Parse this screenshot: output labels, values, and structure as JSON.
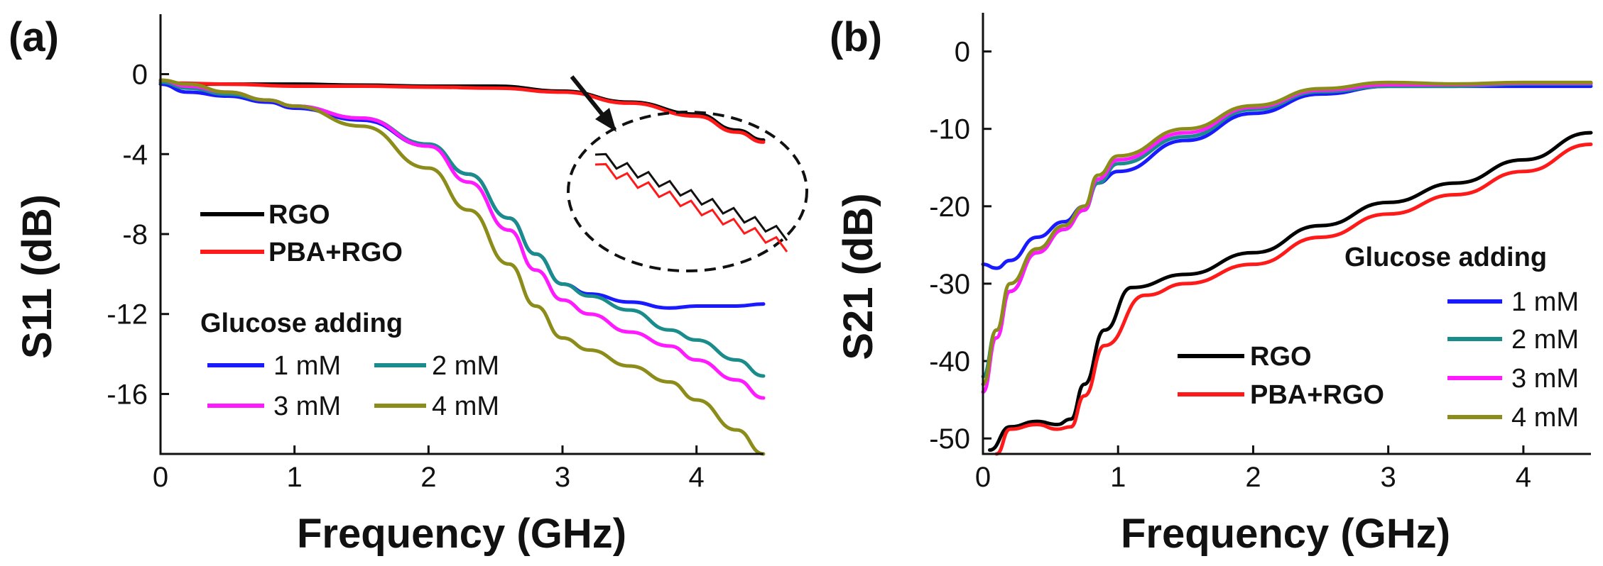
{
  "chart_data": [
    {
      "type": "line",
      "panel_label": "(a)",
      "xlabel": "Frequency (GHz)",
      "ylabel": "S11 (dB)",
      "xlim": [
        0,
        4.5
      ],
      "ylim": [
        -19,
        3
      ],
      "xticks": [
        0,
        1,
        2,
        3,
        4
      ],
      "yticks": [
        0,
        -4,
        -8,
        -12,
        -16
      ],
      "legend_group_title": "Glucose adding",
      "series": [
        {
          "name": "RGO",
          "color": "#000000",
          "x": [
            0.1,
            0.5,
            1.0,
            1.5,
            2.0,
            2.5,
            3.0,
            3.5,
            4.0,
            4.3,
            4.5
          ],
          "values": [
            -0.5,
            -0.5,
            -0.5,
            -0.55,
            -0.6,
            -0.6,
            -0.85,
            -1.4,
            -2.0,
            -2.8,
            -3.3
          ]
        },
        {
          "name": "PBA+RGO",
          "color": "#ff1a1a",
          "x": [
            0.1,
            0.5,
            1.0,
            1.5,
            2.0,
            2.5,
            3.0,
            3.5,
            4.0,
            4.3,
            4.5
          ],
          "values": [
            -0.45,
            -0.5,
            -0.6,
            -0.6,
            -0.65,
            -0.7,
            -0.9,
            -1.45,
            -2.1,
            -2.9,
            -3.4
          ]
        },
        {
          "name": "1 mM",
          "color": "#1a1aff",
          "x": [
            0,
            0.2,
            0.5,
            0.8,
            1.0,
            1.5,
            2.0,
            2.3,
            2.6,
            2.8,
            3.0,
            3.2,
            3.5,
            3.8,
            4.0,
            4.3,
            4.5
          ],
          "values": [
            -0.5,
            -0.9,
            -1.1,
            -1.4,
            -1.7,
            -2.3,
            -3.6,
            -5.0,
            -7.2,
            -9.0,
            -10.5,
            -11.0,
            -11.4,
            -11.7,
            -11.6,
            -11.6,
            -11.5
          ]
        },
        {
          "name": "2 mM",
          "color": "#1a8c8c",
          "x": [
            0,
            0.2,
            0.5,
            0.8,
            1.0,
            1.5,
            2.0,
            2.3,
            2.6,
            2.8,
            3.0,
            3.2,
            3.5,
            3.8,
            4.0,
            4.3,
            4.5
          ],
          "values": [
            -0.4,
            -0.7,
            -1.0,
            -1.3,
            -1.6,
            -2.2,
            -3.5,
            -5.0,
            -7.2,
            -9.0,
            -10.5,
            -11.1,
            -11.8,
            -12.8,
            -13.3,
            -14.3,
            -15.1
          ]
        },
        {
          "name": "3 mM",
          "color": "#ff1aff",
          "x": [
            0,
            0.2,
            0.5,
            0.8,
            1.0,
            1.5,
            2.0,
            2.3,
            2.6,
            2.8,
            3.0,
            3.2,
            3.5,
            3.8,
            4.0,
            4.3,
            4.5
          ],
          "values": [
            -0.3,
            -0.6,
            -0.9,
            -1.3,
            -1.6,
            -2.2,
            -3.6,
            -5.4,
            -7.8,
            -9.8,
            -11.3,
            -12.0,
            -12.9,
            -13.6,
            -14.3,
            -15.3,
            -16.2
          ]
        },
        {
          "name": "4 mM",
          "color": "#8c8c1a",
          "x": [
            0,
            0.2,
            0.5,
            0.8,
            1.0,
            1.5,
            2.0,
            2.3,
            2.6,
            2.8,
            3.0,
            3.2,
            3.5,
            3.8,
            4.0,
            4.3,
            4.5
          ],
          "values": [
            -0.3,
            -0.5,
            -0.9,
            -1.3,
            -1.6,
            -2.6,
            -4.7,
            -6.8,
            -9.5,
            -11.6,
            -13.2,
            -13.8,
            -14.6,
            -15.4,
            -16.3,
            -17.8,
            -19.0
          ]
        }
      ],
      "legend_labels": {
        "rgo": "RGO",
        "pba": "PBA+RGO",
        "m1": "1 mM",
        "m2": "2 mM",
        "m3": "3 mM",
        "m4": "4 mM"
      },
      "annotation": "inset magnifying RGO vs PBA+RGO near 3.2-4.5 GHz"
    },
    {
      "type": "line",
      "panel_label": "(b)",
      "xlabel": "Frequency (GHz)",
      "ylabel": "S21 (dB)",
      "xlim": [
        0,
        4.5
      ],
      "ylim": [
        -52,
        5
      ],
      "xticks": [
        0,
        1,
        2,
        3,
        4
      ],
      "yticks": [
        0,
        -10,
        -20,
        -30,
        -40,
        -50
      ],
      "legend_group_title": "Glucose adding",
      "series": [
        {
          "name": "RGO",
          "color": "#000000",
          "x": [
            0.05,
            0.2,
            0.4,
            0.55,
            0.65,
            0.75,
            0.9,
            1.1,
            1.5,
            2.0,
            2.5,
            3.0,
            3.5,
            4.0,
            4.5
          ],
          "values": [
            -51.5,
            -48.5,
            -47.8,
            -48.2,
            -47.5,
            -43.0,
            -36.0,
            -30.5,
            -28.8,
            -26.0,
            -22.5,
            -19.5,
            -17.0,
            -14.0,
            -10.5
          ]
        },
        {
          "name": "PBA+RGO",
          "color": "#ff1a1a",
          "x": [
            0.1,
            0.2,
            0.4,
            0.55,
            0.65,
            0.75,
            0.9,
            1.2,
            1.5,
            2.0,
            2.5,
            3.0,
            3.5,
            4.0,
            4.5
          ],
          "values": [
            -52,
            -48.8,
            -48.2,
            -48.8,
            -48.5,
            -44.5,
            -38.0,
            -31.5,
            -30.0,
            -27.5,
            -24.0,
            -21.0,
            -18.5,
            -15.5,
            -12.0
          ]
        },
        {
          "name": "1 mM",
          "color": "#1a1aff",
          "x": [
            0,
            0.1,
            0.2,
            0.4,
            0.6,
            0.75,
            0.85,
            1.0,
            1.5,
            2.0,
            2.5,
            3.0,
            3.5,
            4.0,
            4.5
          ],
          "values": [
            -27.5,
            -28.0,
            -27.0,
            -24.0,
            -22.0,
            -20.0,
            -17.0,
            -15.5,
            -11.5,
            -8.0,
            -5.5,
            -4.5,
            -4.5,
            -4.5,
            -4.5
          ]
        },
        {
          "name": "2 mM",
          "color": "#1a8c8c",
          "x": [
            0,
            0.1,
            0.2,
            0.4,
            0.6,
            0.75,
            0.85,
            1.0,
            1.5,
            2.0,
            2.5,
            3.0,
            3.5,
            4.0,
            4.5
          ],
          "values": [
            -42.0,
            -36.0,
            -31.0,
            -26.0,
            -23.0,
            -20.5,
            -17.0,
            -14.5,
            -11.0,
            -7.5,
            -5.2,
            -4.5,
            -4.5,
            -4.2,
            -4.2
          ]
        },
        {
          "name": "3 mM",
          "color": "#ff1aff",
          "x": [
            0,
            0.1,
            0.2,
            0.4,
            0.6,
            0.75,
            0.85,
            1.0,
            1.5,
            2.0,
            2.5,
            3.0,
            3.5,
            4.0,
            4.5
          ],
          "values": [
            -44.0,
            -37.0,
            -31.0,
            -26.0,
            -23.0,
            -20.5,
            -16.5,
            -14.0,
            -10.5,
            -7.2,
            -5.0,
            -4.3,
            -4.3,
            -4.1,
            -4.1
          ]
        },
        {
          "name": "4 mM",
          "color": "#8c8c1a",
          "x": [
            0,
            0.1,
            0.2,
            0.4,
            0.6,
            0.75,
            0.85,
            1.0,
            1.5,
            2.0,
            2.5,
            3.0,
            3.5,
            4.0,
            4.5
          ],
          "values": [
            -43.0,
            -36.0,
            -30.0,
            -25.5,
            -22.5,
            -20.0,
            -16.0,
            -13.5,
            -10.0,
            -7.0,
            -4.8,
            -4.0,
            -4.2,
            -4.0,
            -4.0
          ]
        }
      ],
      "legend_labels": {
        "rgo": "RGO",
        "pba": "PBA+RGO",
        "m1": "1 mM",
        "m2": "2 mM",
        "m3": "3 mM",
        "m4": "4 mM"
      }
    }
  ]
}
